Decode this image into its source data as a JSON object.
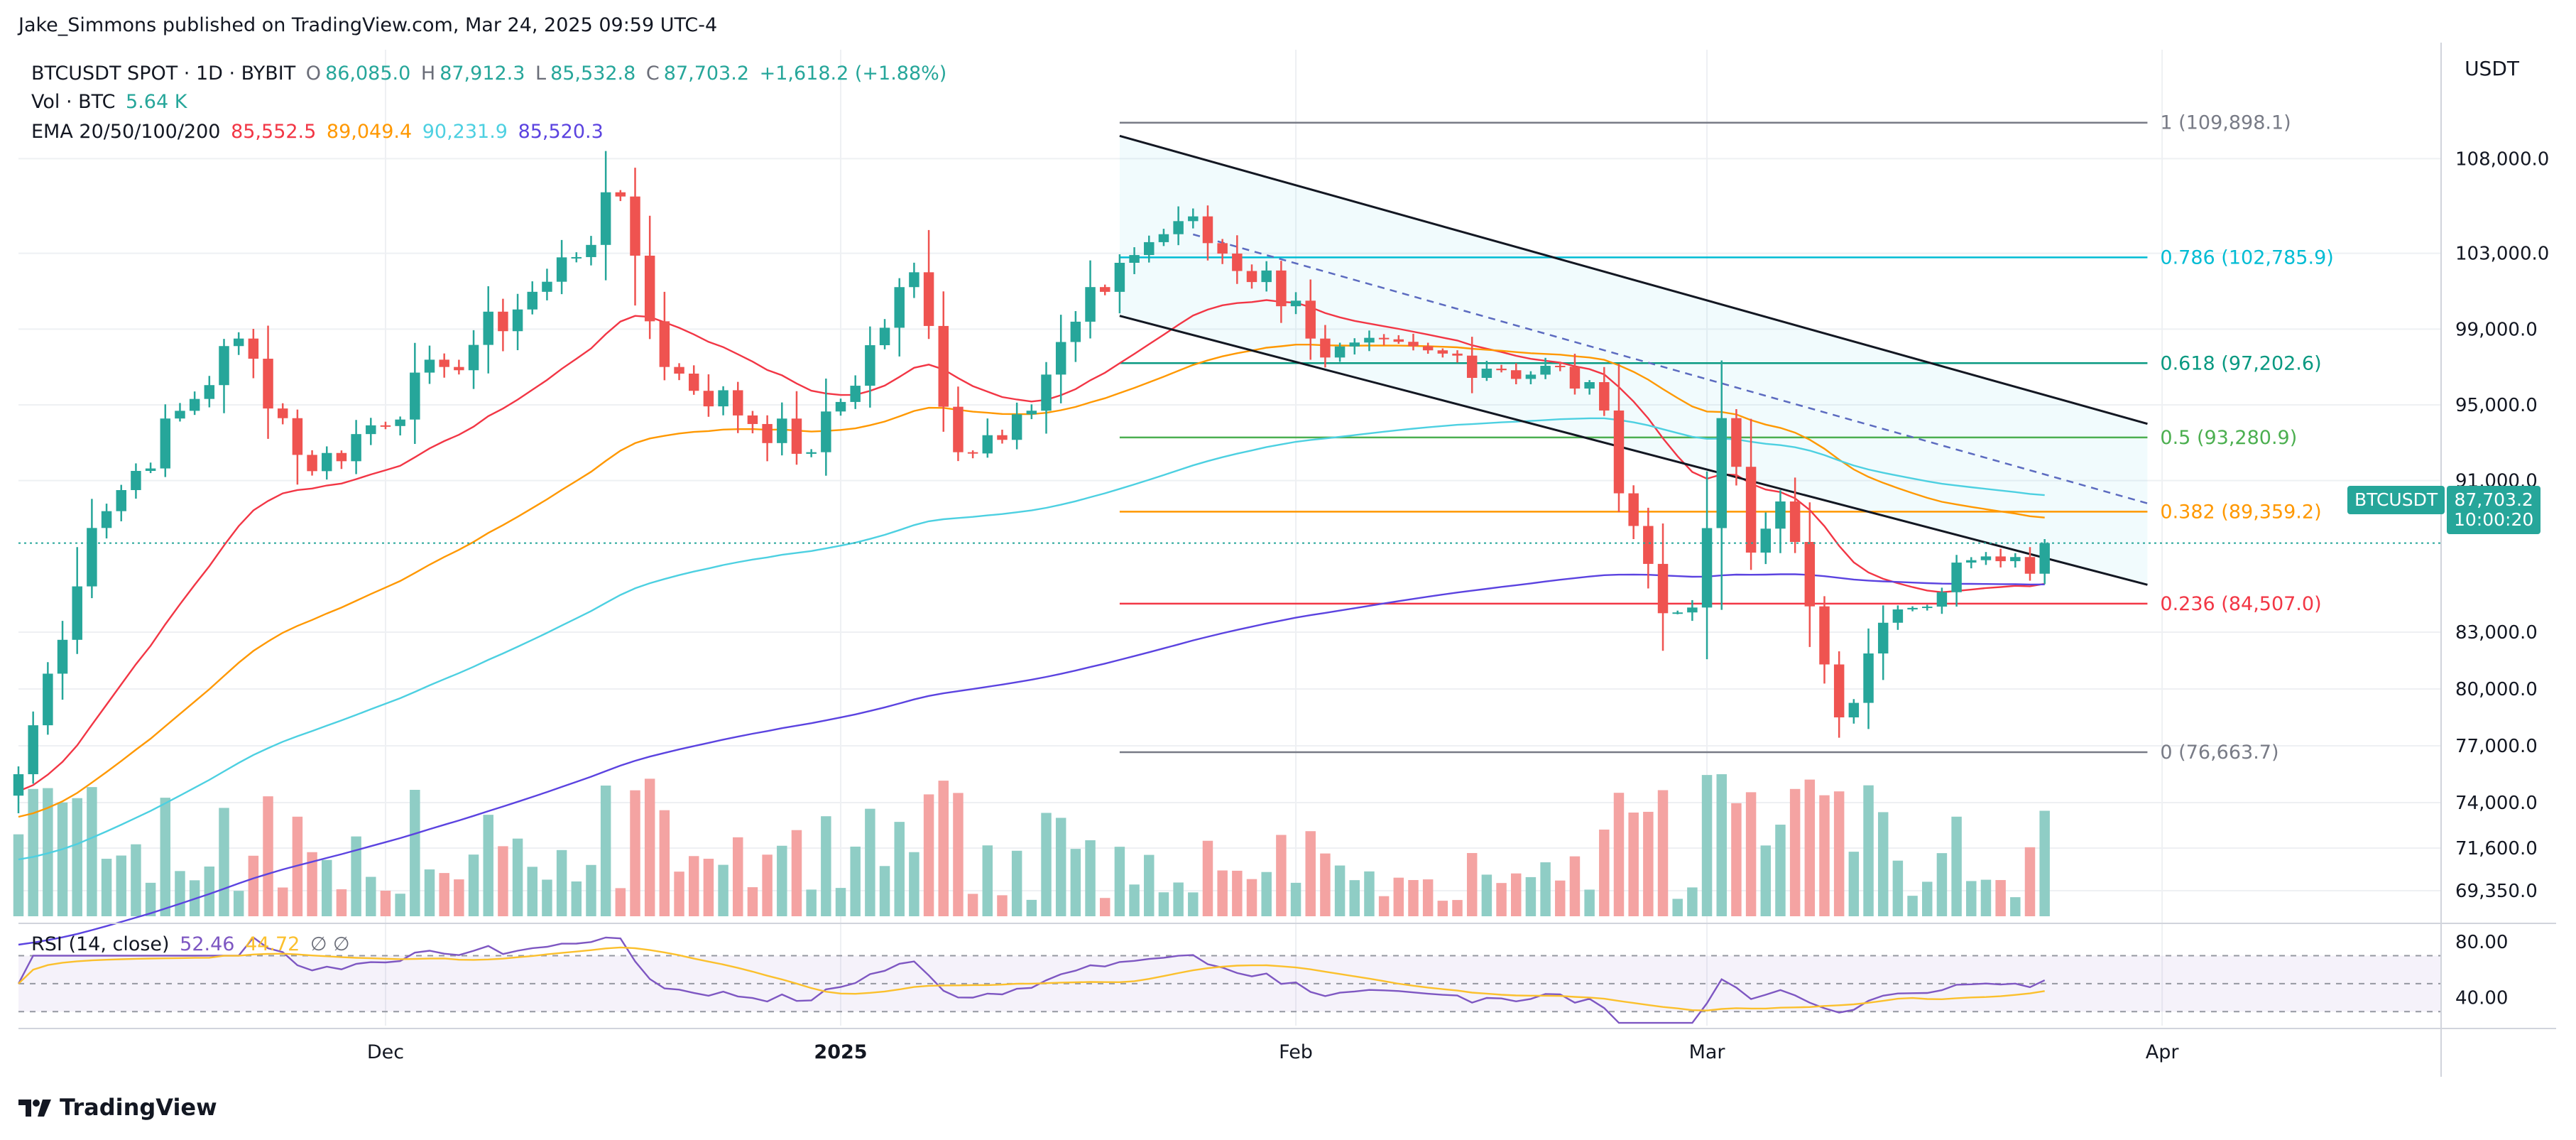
{
  "header": {
    "published": "Jake_Simmons published on TradingView.com, Mar 24, 2025 09:59 UTC-4"
  },
  "legend": {
    "symbol": "BTCUSDT SPOT · 1D · BYBIT",
    "o_label": "O",
    "o": "86,085.0",
    "h_label": "H",
    "h": "87,912.3",
    "l_label": "L",
    "l": "85,532.8",
    "c_label": "C",
    "c": "87,703.2",
    "change": "+1,618.2 (+1.88%)",
    "vol_label": "Vol · BTC",
    "vol": "5.64 K",
    "ema_label": "EMA 20/50/100/200",
    "ema20": "85,552.5",
    "ema50": "89,049.4",
    "ema100": "90,231.9",
    "ema200": "85,520.3",
    "rsi_label": "RSI (14, close)",
    "rsi": "52.46",
    "rsi_ma": "44.72"
  },
  "price_axis": {
    "unit": "USDT",
    "labels": [
      "108,000.0",
      "103,000.0",
      "99,000.0",
      "95,000.0",
      "91,000.0",
      "83,000.0",
      "80,000.0",
      "77,000.0",
      "74,000.0",
      "71,600.0",
      "69,350.0"
    ],
    "last_symbol": "BTCUSDT",
    "last_price": "87,703.2",
    "countdown": "10:00:20"
  },
  "rsi_axis": {
    "labels": [
      "80.00",
      "40.00"
    ]
  },
  "time_axis": {
    "labels": [
      "Dec",
      "2025",
      "Feb",
      "Mar",
      "Apr"
    ]
  },
  "fib": {
    "levels": [
      {
        "label": "1 (109,898.1)",
        "color": "#787b86"
      },
      {
        "label": "0.786 (102,785.9)",
        "color": "#00bcd4"
      },
      {
        "label": "0.618 (97,202.6)",
        "color": "#089981"
      },
      {
        "label": "0.5 (93,280.9)",
        "color": "#4caf50"
      },
      {
        "label": "0.382 (89,359.2)",
        "color": "#ff9800"
      },
      {
        "label": "0.236 (84,507.0)",
        "color": "#f23645"
      },
      {
        "label": "0 (76,663.7)",
        "color": "#787b86"
      }
    ]
  },
  "colors": {
    "up": "#26a69a",
    "down": "#ef5350",
    "vol_up": "#8fcdc5",
    "vol_down": "#f4a3a2",
    "ema20": "#f23645",
    "ema50": "#ff9800",
    "ema100": "#4dd0e1",
    "ema200": "#5b43e0",
    "rsi": "#7e57c2",
    "rsi_ma": "#fbc02d",
    "tag": "#26a69a"
  },
  "branding": {
    "name": "TradingView"
  },
  "chart_data": {
    "type": "candlestick",
    "title": "BTCUSDT SPOT · 1D · BYBIT",
    "x_range": [
      "2024-11-06",
      "2025-04-20"
    ],
    "ylim": [
      68000,
      111500
    ],
    "anchors": [
      {
        "date": "2024-11-06",
        "close": 75500
      },
      {
        "date": "2024-11-11",
        "close": 88500
      },
      {
        "date": "2024-11-13",
        "close": 90500
      },
      {
        "date": "2024-11-21",
        "close": 98500
      },
      {
        "date": "2024-11-26",
        "close": 91500
      },
      {
        "date": "2024-12-05",
        "close": 97000
      },
      {
        "date": "2024-12-12",
        "close": 101500
      },
      {
        "date": "2024-12-17",
        "close": 106000
      },
      {
        "date": "2024-12-20",
        "close": 97000
      },
      {
        "date": "2024-12-30",
        "close": 92500
      },
      {
        "date": "2025-01-06",
        "close": 102000
      },
      {
        "date": "2025-01-09",
        "close": 92500
      },
      {
        "date": "2025-01-13",
        "close": 94500
      },
      {
        "date": "2025-01-20",
        "close": 102500
      },
      {
        "date": "2025-01-24",
        "close": 104700
      },
      {
        "date": "2025-02-01",
        "close": 100500
      },
      {
        "date": "2025-02-03",
        "close": 97500
      },
      {
        "date": "2025-02-12",
        "close": 97600
      },
      {
        "date": "2025-02-21",
        "close": 96200
      },
      {
        "date": "2025-02-26",
        "close": 84000
      },
      {
        "date": "2025-02-28",
        "close": 84300
      },
      {
        "date": "2025-03-02",
        "close": 94300
      },
      {
        "date": "2025-03-04",
        "close": 87200
      },
      {
        "date": "2025-03-06",
        "close": 89900
      },
      {
        "date": "2025-03-10",
        "close": 78500
      },
      {
        "date": "2025-03-14",
        "close": 84200
      },
      {
        "date": "2025-03-19",
        "close": 86800
      },
      {
        "date": "2025-03-23",
        "close": 86085
      },
      {
        "date": "2025-03-24",
        "close": 87703.2
      }
    ],
    "last_candle": {
      "date": "2025-03-24",
      "open": 86085.0,
      "high": 87912.3,
      "low": 85532.8,
      "close": 87703.2
    },
    "ema": {
      "ema20": 85552.5,
      "ema50": 89049.4,
      "ema100": 90231.9,
      "ema200": 85520.3
    },
    "fibonacci": [
      {
        "ratio": 1,
        "price": 109898.1
      },
      {
        "ratio": 0.786,
        "price": 102785.9
      },
      {
        "ratio": 0.618,
        "price": 97202.6
      },
      {
        "ratio": 0.5,
        "price": 93280.9
      },
      {
        "ratio": 0.382,
        "price": 89359.2
      },
      {
        "ratio": 0.236,
        "price": 84507.0
      },
      {
        "ratio": 0,
        "price": 76663.7
      }
    ],
    "fib_range": {
      "start": "2025-01-20",
      "end": "2025-03-31"
    },
    "channel": {
      "upper": [
        {
          "date": "2025-01-20",
          "price": 109200
        },
        {
          "date": "2025-03-31",
          "price": 94000
        }
      ],
      "lower": [
        {
          "date": "2025-01-20",
          "price": 99700
        },
        {
          "date": "2025-03-31",
          "price": 85500
        }
      ]
    },
    "rsi": {
      "period": 14,
      "value": 52.46,
      "ma": 44.72,
      "levels": [
        70,
        50,
        30
      ],
      "ylim": [
        20,
        85
      ]
    },
    "volume_last_k": 5.64
  }
}
